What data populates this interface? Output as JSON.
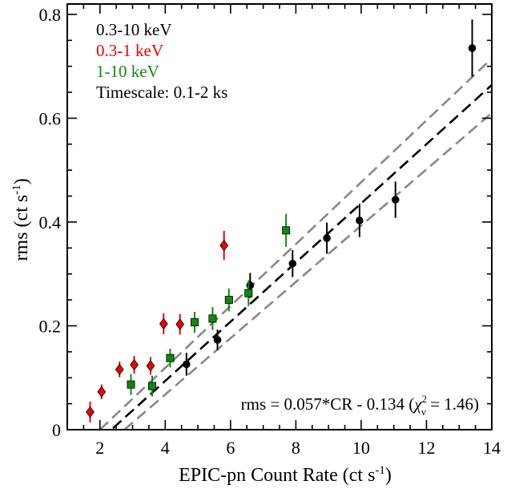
{
  "chart_data": {
    "type": "scatter",
    "xlabel": "EPIC-pn Count Rate (ct s",
    "xlabel_sup": "-1",
    "xlabel_end": ")",
    "ylabel": "rms (ct s",
    "ylabel_sup": "-1",
    "ylabel_end": ")",
    "xlim": [
      1,
      14
    ],
    "ylim": [
      0,
      0.82
    ],
    "x_ticks": [
      2,
      4,
      6,
      8,
      10,
      12,
      14
    ],
    "y_ticks": [
      0,
      0.2,
      0.4,
      0.6,
      0.8
    ],
    "x_tick_labels": [
      "2",
      "4",
      "6",
      "8",
      "10",
      "12",
      "14"
    ],
    "y_tick_labels": [
      "0",
      "0.2",
      "0.4",
      "0.6",
      "0.8"
    ],
    "legend": [
      {
        "label": "0.3-10 keV",
        "color": "#000000"
      },
      {
        "label": "0.3-1 keV",
        "color": "#ee0000"
      },
      {
        "label": "1-10 keV",
        "color": "#118811"
      },
      {
        "label": "Timescale: 0.1-2 ks",
        "color": "#000000"
      }
    ],
    "series": [
      {
        "name": "0.3-10 keV",
        "marker": "circle",
        "color": "#000000",
        "points": [
          {
            "x": 4.65,
            "y": 0.126,
            "err": 0.022
          },
          {
            "x": 5.6,
            "y": 0.173,
            "err": 0.02
          },
          {
            "x": 6.6,
            "y": 0.278,
            "err": 0.024
          },
          {
            "x": 7.9,
            "y": 0.32,
            "err": 0.026
          },
          {
            "x": 8.95,
            "y": 0.369,
            "err": 0.03
          },
          {
            "x": 9.95,
            "y": 0.403,
            "err": 0.032
          },
          {
            "x": 11.05,
            "y": 0.443,
            "err": 0.035
          },
          {
            "x": 13.4,
            "y": 0.735,
            "err": 0.055
          }
        ]
      },
      {
        "name": "0.3-1 keV",
        "marker": "diamond",
        "color": "#ee0000",
        "points": [
          {
            "x": 1.7,
            "y": 0.034,
            "err": 0.02
          },
          {
            "x": 2.05,
            "y": 0.073,
            "err": 0.014
          },
          {
            "x": 2.6,
            "y": 0.116,
            "err": 0.015
          },
          {
            "x": 3.05,
            "y": 0.125,
            "err": 0.017
          },
          {
            "x": 3.55,
            "y": 0.123,
            "err": 0.017
          },
          {
            "x": 3.95,
            "y": 0.204,
            "err": 0.02
          },
          {
            "x": 4.45,
            "y": 0.203,
            "err": 0.02
          },
          {
            "x": 5.8,
            "y": 0.355,
            "err": 0.028
          }
        ]
      },
      {
        "name": "1-10 keV",
        "marker": "square",
        "color": "#118811",
        "points": [
          {
            "x": 2.95,
            "y": 0.087,
            "err": 0.02
          },
          {
            "x": 3.6,
            "y": 0.084,
            "err": 0.02
          },
          {
            "x": 4.15,
            "y": 0.138,
            "err": 0.018
          },
          {
            "x": 4.9,
            "y": 0.207,
            "err": 0.02
          },
          {
            "x": 5.45,
            "y": 0.214,
            "err": 0.022
          },
          {
            "x": 5.95,
            "y": 0.25,
            "err": 0.022
          },
          {
            "x": 6.55,
            "y": 0.263,
            "err": 0.025
          },
          {
            "x": 7.7,
            "y": 0.384,
            "err": 0.032
          }
        ]
      }
    ],
    "fit": {
      "slope": 0.057,
      "intercept": -0.134,
      "x_range": [
        2.4,
        14
      ],
      "color": "#000000"
    },
    "confidence_bands": [
      {
        "color": "#888888",
        "points": [
          [
            2.0,
            0.0
          ],
          [
            14.0,
            0.715
          ]
        ]
      },
      {
        "color": "#888888",
        "points": [
          [
            2.75,
            0.0
          ],
          [
            14.0,
            0.61
          ]
        ]
      }
    ],
    "annotation": {
      "prefix": "rms = 0.057*CR - 0.134 (",
      "chi": "χ",
      "chi_sup": "2",
      "chi_sub": "ν",
      "suffix": " = 1.46)"
    }
  }
}
